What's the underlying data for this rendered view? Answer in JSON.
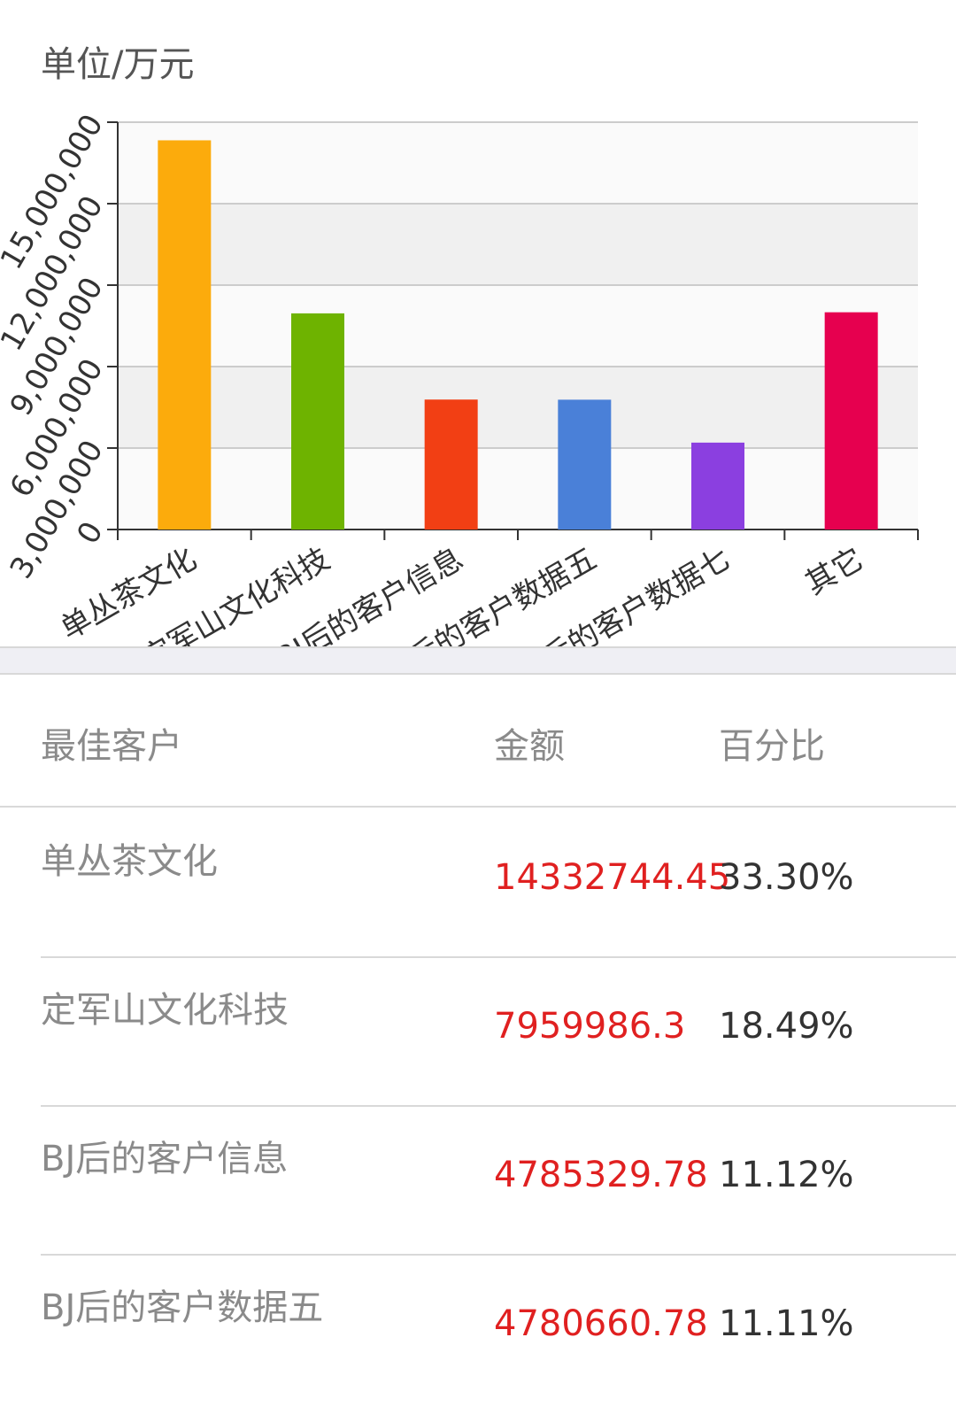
{
  "chart_unit": "单位/万元",
  "chart_data": {
    "type": "bar",
    "categories": [
      "单丛茶文化",
      "定军山文化科技",
      "BJ后的客户信息",
      "BJ后的客户数据五",
      "BJ后的客户数据七",
      "其它"
    ],
    "values": [
      14332744.45,
      7959986.3,
      4785329.78,
      4780660.78,
      3200000,
      8000000
    ],
    "colors": [
      "#fcab0c",
      "#6eb300",
      "#f23f14",
      "#4a80d8",
      "#8b3fe0",
      "#e6004f"
    ],
    "yticks": [
      "0",
      "3,000,000",
      "6,000,000",
      "9,000,000",
      "12,000,000",
      "15,000,000"
    ],
    "ylim": [
      0,
      15000000
    ],
    "grid": true,
    "legend": "none"
  },
  "table": {
    "headers": {
      "name": "最佳客户",
      "amount": "金额",
      "percent": "百分比"
    },
    "amount_color": "#e02020",
    "rows": [
      {
        "name": "单丛茶文化",
        "amount": "14332744.45",
        "percent": "33.30%"
      },
      {
        "name": "定军山文化科技",
        "amount": "7959986.3",
        "percent": "18.49%"
      },
      {
        "name": "BJ后的客户信息",
        "amount": "4785329.78",
        "percent": "11.12%"
      },
      {
        "name": "BJ后的客户数据五",
        "amount": "4780660.78",
        "percent": "11.11%"
      }
    ]
  }
}
